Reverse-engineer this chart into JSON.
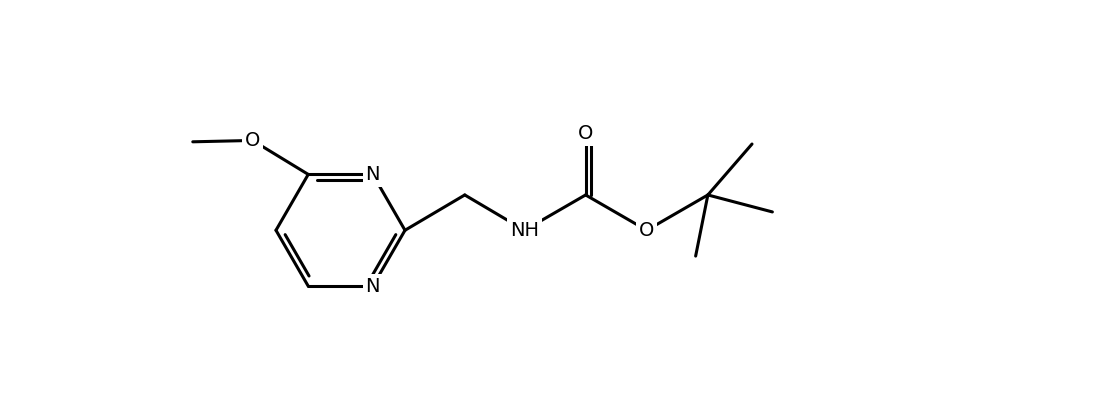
{
  "background": "#ffffff",
  "line_color": "#000000",
  "line_width": 2.2,
  "font_size": 14,
  "figsize": [
    11.02,
    4.13
  ],
  "dpi": 100,
  "xlim": [
    -0.5,
    12.5
  ],
  "ylim": [
    -2.8,
    3.2
  ]
}
